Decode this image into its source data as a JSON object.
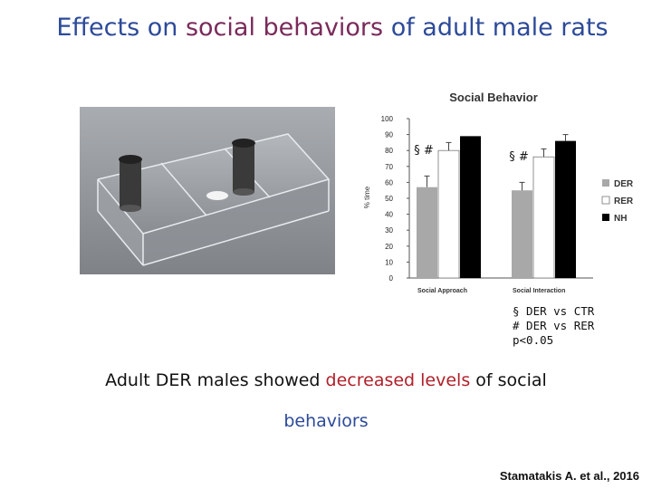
{
  "title": {
    "part1": "Effects on ",
    "part2": "social behaviors",
    "part3": " of adult male rats"
  },
  "photo": {
    "alt": "three-chamber apparatus"
  },
  "chart_data": {
    "type": "bar",
    "title": "Social Behavior",
    "ylabel": "% time",
    "ylim": [
      0,
      100
    ],
    "yticks": [
      0,
      10,
      20,
      30,
      40,
      50,
      60,
      70,
      80,
      90,
      100
    ],
    "categories": [
      "Social Approach",
      "Social Interaction"
    ],
    "series": [
      {
        "name": "DER",
        "color": "#a8a8a8",
        "values": [
          57,
          55
        ],
        "errors": [
          7,
          5
        ]
      },
      {
        "name": "RER",
        "color": "#ffffff",
        "values": [
          80,
          76
        ],
        "errors": [
          5,
          5
        ]
      },
      {
        "name": "NH",
        "color": "#000000",
        "values": [
          89,
          86
        ],
        "errors": [
          0,
          4
        ]
      }
    ],
    "annotations": [
      "§ #",
      "§ #"
    ],
    "legend_position": "right"
  },
  "stats": {
    "line1": "§ DER vs CTR",
    "line2": "# DER vs RER",
    "line3": "p<0.05"
  },
  "conclusion": {
    "part1": "Adult DER males showed ",
    "part2": "decreased levels",
    "part3": " of ",
    "part4": "social",
    "part5": "behaviors"
  },
  "citation": "Stamatakis A. et al., 2016"
}
